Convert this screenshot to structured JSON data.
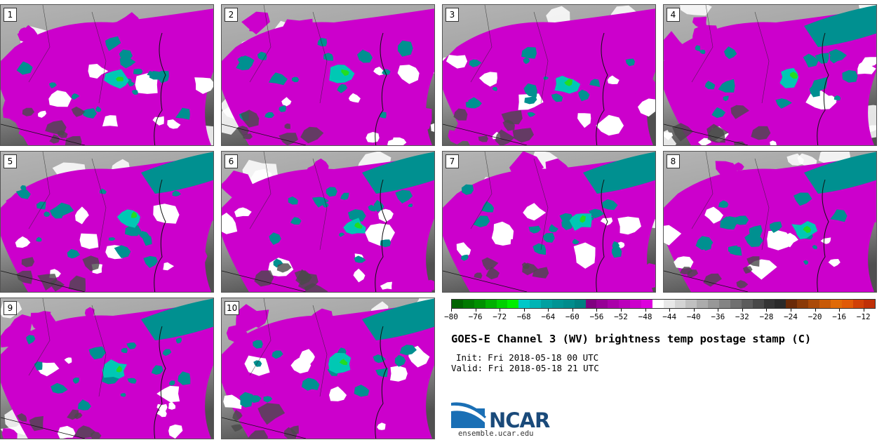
{
  "panels": [
    {
      "label": "1"
    },
    {
      "label": "2"
    },
    {
      "label": "3"
    },
    {
      "label": "4"
    },
    {
      "label": "5"
    },
    {
      "label": "6"
    },
    {
      "label": "7"
    },
    {
      "label": "8"
    },
    {
      "label": "9"
    },
    {
      "label": "10"
    }
  ],
  "colorbar": {
    "min": -80,
    "max": -10,
    "tick_labels": [
      "−80",
      "−76",
      "−72",
      "−68",
      "−64",
      "−60",
      "−56",
      "−52",
      "−48",
      "−44",
      "−40",
      "−36",
      "−32",
      "−28",
      "−24",
      "−20",
      "−16",
      "−12"
    ],
    "tick_values": [
      -80,
      -76,
      -72,
      -68,
      -64,
      -60,
      -56,
      -52,
      -48,
      -44,
      -40,
      -36,
      -32,
      -28,
      -24,
      -20,
      -16,
      -12
    ],
    "colors": [
      "#006400",
      "#007a00",
      "#009000",
      "#00b000",
      "#00d000",
      "#00ee00",
      "#00c8c8",
      "#00b4b4",
      "#00a0a0",
      "#009494",
      "#008c8c",
      "#008080",
      "#800080",
      "#960096",
      "#aa00aa",
      "#bb00bb",
      "#cc00cc",
      "#dd00dd",
      "#ffffff",
      "#e8e8e8",
      "#d4d4d4",
      "#c0c0c0",
      "#acacac",
      "#989898",
      "#848484",
      "#707070",
      "#5c5c5c",
      "#484848",
      "#343434",
      "#2a2a2a",
      "#6a2a08",
      "#8a3a08",
      "#aa4a08",
      "#c85a08",
      "#e06a08",
      "#e05a08",
      "#d04008",
      "#c03008"
    ]
  },
  "title": "GOES-E Channel 3 (WV) brightness temp postage stamp (C)",
  "init": "Init: Fri 2018-05-18 00 UTC",
  "valid": "Valid: Fri 2018-05-18 21 UTC",
  "logo": {
    "text": "NCAR",
    "site": "ensemble.ucar.edu"
  },
  "map_colors": {
    "magenta": "#cc00cc",
    "teal": "#009090",
    "cyan": "#00c8b4",
    "green": "#22dd22",
    "white": "#ffffff",
    "gray": "#9a9a9a",
    "dark": "#4a4a4a"
  }
}
